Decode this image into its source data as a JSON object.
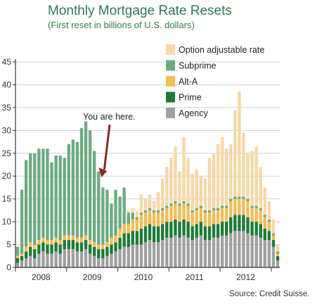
{
  "chart_data": {
    "type": "bar",
    "stacked": true,
    "title": "Monthly Mortgage Rate Resets",
    "subtitle": "(First reset in billions of U.S. dollars)",
    "source": "Source: Credit Suisse.",
    "annotation": "You are here.",
    "ylim": [
      0,
      45
    ],
    "yticks": [
      0,
      5,
      10,
      15,
      20,
      25,
      30,
      35,
      40,
      45
    ],
    "grid": true,
    "legend_position": "top-right",
    "x_ticks": [
      "2008",
      "2009",
      "2010",
      "2011",
      "2012"
    ],
    "x_tick_months": [
      6,
      18,
      30,
      42,
      54
    ],
    "annotation_month": 20,
    "months": 62,
    "colors": {
      "agency": "#a0a0a0",
      "prime": "#1f7a3a",
      "altA": "#f2bd57",
      "subprime": "#6eaa82",
      "optionARM": "#f7d7a8",
      "axis": "#333333",
      "grid": "#cfcfcf",
      "arrow": "#8a2b24",
      "title": "#2e7a4a"
    },
    "series": [
      {
        "name": "Agency",
        "key": "agency",
        "values": [
          1,
          1.5,
          2,
          2.5,
          2,
          3,
          3.5,
          3,
          3,
          3.5,
          3,
          4,
          4,
          4,
          3.5,
          3.5,
          4,
          3,
          2.5,
          2,
          2,
          2.5,
          3,
          3.5,
          4,
          4.5,
          4.5,
          5,
          5,
          5,
          5.5,
          6,
          5.5,
          5.5,
          6,
          6.5,
          6.5,
          7,
          6.5,
          7,
          6.5,
          6,
          6.5,
          7,
          6,
          6,
          6.5,
          6.5,
          7,
          7,
          7.5,
          8,
          8,
          8,
          7.5,
          7,
          7,
          6.5,
          6,
          6,
          4.5,
          1.5
        ]
      },
      {
        "name": "Prime",
        "key": "prime",
        "values": [
          1,
          1,
          1.5,
          2,
          2,
          2,
          2,
          2,
          2,
          2,
          2,
          2,
          2,
          2,
          2,
          2,
          2,
          2,
          2,
          2,
          2,
          2,
          2,
          2,
          2.5,
          3,
          3,
          3,
          3,
          3.5,
          3.5,
          3.5,
          3.5,
          3.5,
          3.5,
          3.5,
          3.5,
          3.5,
          3.5,
          3.5,
          3.5,
          3,
          3,
          3,
          3,
          3,
          3,
          3,
          3,
          3,
          3.5,
          3.5,
          3.5,
          3.5,
          3.5,
          3,
          3,
          3,
          2.5,
          2,
          1.5,
          1
        ]
      },
      {
        "name": "Alt-A",
        "key": "altA",
        "values": [
          0.5,
          0.5,
          1,
          1,
          1,
          1,
          1,
          1,
          1,
          1,
          1,
          1,
          1,
          1,
          1,
          1,
          1,
          1,
          1,
          1,
          1,
          1,
          1.5,
          1.5,
          2,
          2,
          2,
          2.5,
          2.5,
          3,
          3,
          3,
          3,
          3,
          3,
          3,
          3.5,
          3.5,
          3.5,
          3.5,
          3.5,
          3,
          3,
          3,
          3,
          3,
          3,
          3,
          3,
          3,
          3.5,
          3.5,
          3.5,
          3.5,
          3.5,
          3,
          3,
          3,
          2.5,
          2,
          1,
          0.5
        ]
      },
      {
        "name": "Subprime",
        "key": "subprime",
        "values": [
          2,
          14,
          19,
          19.5,
          20,
          20,
          19.5,
          20,
          17,
          18,
          18.5,
          17,
          20,
          21,
          21,
          24,
          25,
          24,
          20,
          16,
          12.5,
          11.5,
          7.5,
          10,
          7,
          8,
          2.5,
          1.5,
          0.5,
          0.5,
          0.5,
          0.5,
          0.5,
          0.5,
          0.5,
          0.5,
          0.5,
          0.5,
          0.5,
          0.5,
          0.5,
          0.5,
          0.5,
          0.5,
          0.5,
          0.5,
          0.5,
          0.5,
          0.5,
          0.5,
          0.5,
          0.5,
          0.5,
          0.5,
          0.5,
          0.5,
          0.5,
          0.5,
          0.5,
          0.5,
          0.5,
          0.5
        ]
      },
      {
        "name": "Option adjustable rate",
        "key": "optionARM",
        "values": [
          0,
          0,
          0,
          0,
          0,
          0,
          0,
          0,
          0,
          0,
          0,
          0,
          0,
          0,
          0,
          0,
          0,
          0,
          0,
          0,
          0,
          0,
          0,
          0,
          0,
          0,
          0.5,
          1,
          1.5,
          4,
          2.5,
          3,
          2,
          4,
          6.5,
          8.5,
          10,
          12,
          7,
          14,
          10,
          8,
          8.5,
          6.5,
          7,
          11.5,
          12,
          14,
          15,
          12.5,
          12,
          19,
          23,
          14,
          10,
          12,
          13,
          9,
          6,
          4,
          3,
          1.5
        ]
      }
    ],
    "legend": [
      "Option adjustable rate",
      "Subprime",
      "Alt-A",
      "Prime",
      "Agency"
    ]
  }
}
